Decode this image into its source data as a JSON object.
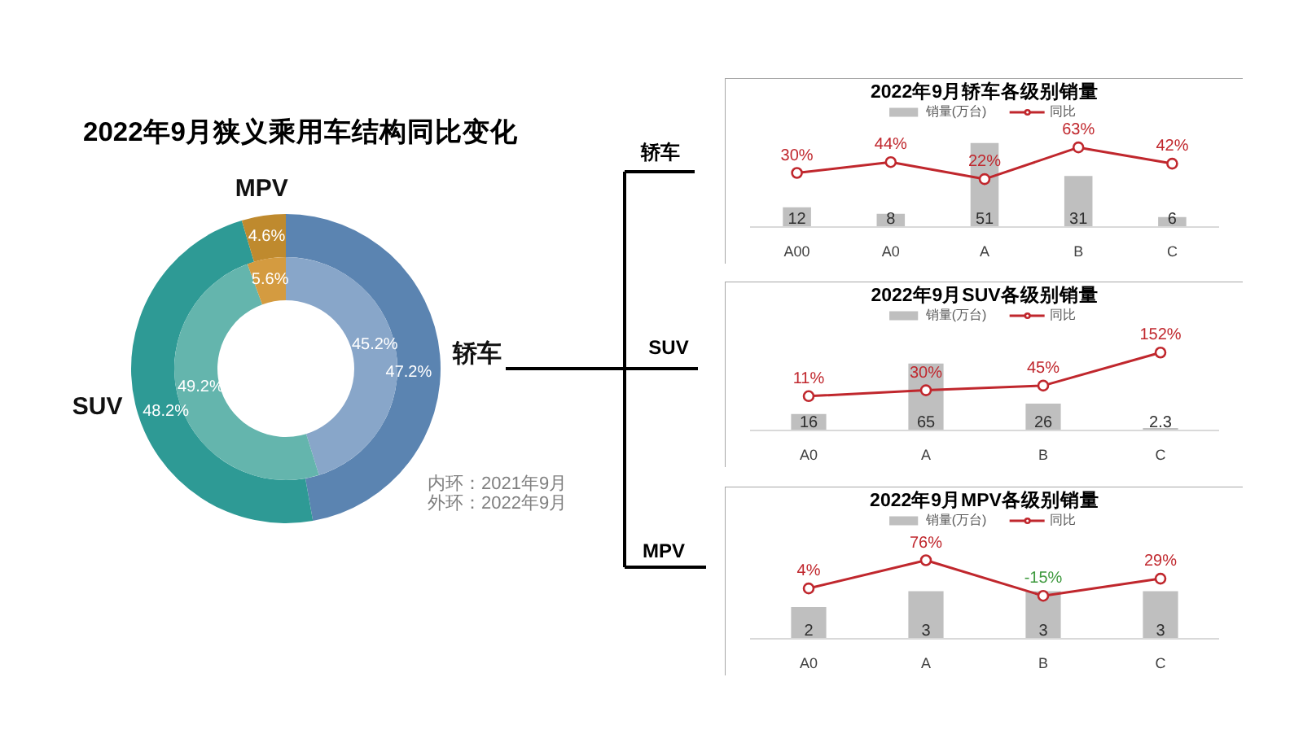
{
  "chart_data": [
    {
      "type": "donut",
      "title": "2022年9月狭义乘用车结构同比变化",
      "categories": [
        "轿车",
        "SUV",
        "MPV"
      ],
      "series": [
        {
          "values": [
            47.2,
            48.2,
            4.6
          ],
          "colors": [
            "#5b84b1",
            "#2e9a95",
            "#bf8a2e"
          ],
          "value_labels": [
            "47.2%",
            "48.2%",
            "4.6%"
          ]
        },
        {
          "values": [
            45.2,
            49.2,
            5.6
          ],
          "colors": [
            "#88a6c9",
            "#64b5ad",
            "#d49b40"
          ],
          "value_labels": [
            "45.2%",
            "49.2%",
            "5.6%"
          ]
        }
      ],
      "annotations": [
        "内环：2021年9月",
        "外环：2022年9月"
      ]
    },
    {
      "type": "bar",
      "title": "2022年9月轿车各级别销量",
      "categories": [
        "A00",
        "A0",
        "A",
        "B",
        "C"
      ],
      "series": [
        {
          "name": "销量(万台)",
          "type": "bar",
          "color": "#bfbfbf",
          "values": [
            12,
            8,
            51,
            31,
            6
          ],
          "value_labels": [
            "12",
            "8",
            "51",
            "31",
            "6"
          ]
        },
        {
          "name": "同比",
          "type": "line",
          "axis": "y2",
          "color": "#c0272d",
          "values": [
            30,
            44,
            22,
            63,
            42
          ],
          "value_labels": [
            "30%",
            "44%",
            "22%",
            "63%",
            "42%"
          ]
        }
      ],
      "ylim": [
        0,
        75
      ],
      "y2lim": [
        -40,
        120
      ],
      "tick_labels": "x",
      "legend": "top",
      "marker": "circle"
    },
    {
      "type": "bar",
      "title": "2022年9月SUV各级别销量",
      "categories": [
        "A0",
        "A",
        "B",
        "C"
      ],
      "series": [
        {
          "name": "销量(万台)",
          "type": "bar",
          "color": "#bfbfbf",
          "values": [
            16,
            65,
            26,
            2.3
          ],
          "value_labels": [
            "16",
            "65",
            "26",
            "2.3"
          ]
        },
        {
          "name": "同比",
          "type": "line",
          "axis": "y2",
          "color": "#c0272d",
          "values": [
            11,
            30,
            45,
            152
          ],
          "value_labels": [
            "11%",
            "30%",
            "45%",
            "152%"
          ]
        }
      ],
      "ylim": [
        0,
        120
      ],
      "y2lim": [
        -100,
        300
      ],
      "tick_labels": "x",
      "legend": "top",
      "marker": "circle"
    },
    {
      "type": "bar",
      "title": "2022年9月MPV各级别销量",
      "categories": [
        "A0",
        "A",
        "B",
        "C"
      ],
      "series": [
        {
          "name": "销量(万台)",
          "type": "bar",
          "color": "#bfbfbf",
          "values": [
            2,
            3,
            3,
            3
          ],
          "value_labels": [
            "2",
            "3",
            "3",
            "3"
          ]
        },
        {
          "name": "同比",
          "type": "line",
          "axis": "y2",
          "color": "#c0272d",
          "values": [
            4,
            76,
            -15,
            29
          ],
          "value_labels": [
            "4%",
            "76%",
            "-15%",
            "29%"
          ]
        }
      ],
      "ylim": [
        0,
        8
      ],
      "y2lim": [
        -125,
        200
      ],
      "tick_labels": "x",
      "legend": "top",
      "marker": "circle"
    }
  ]
}
